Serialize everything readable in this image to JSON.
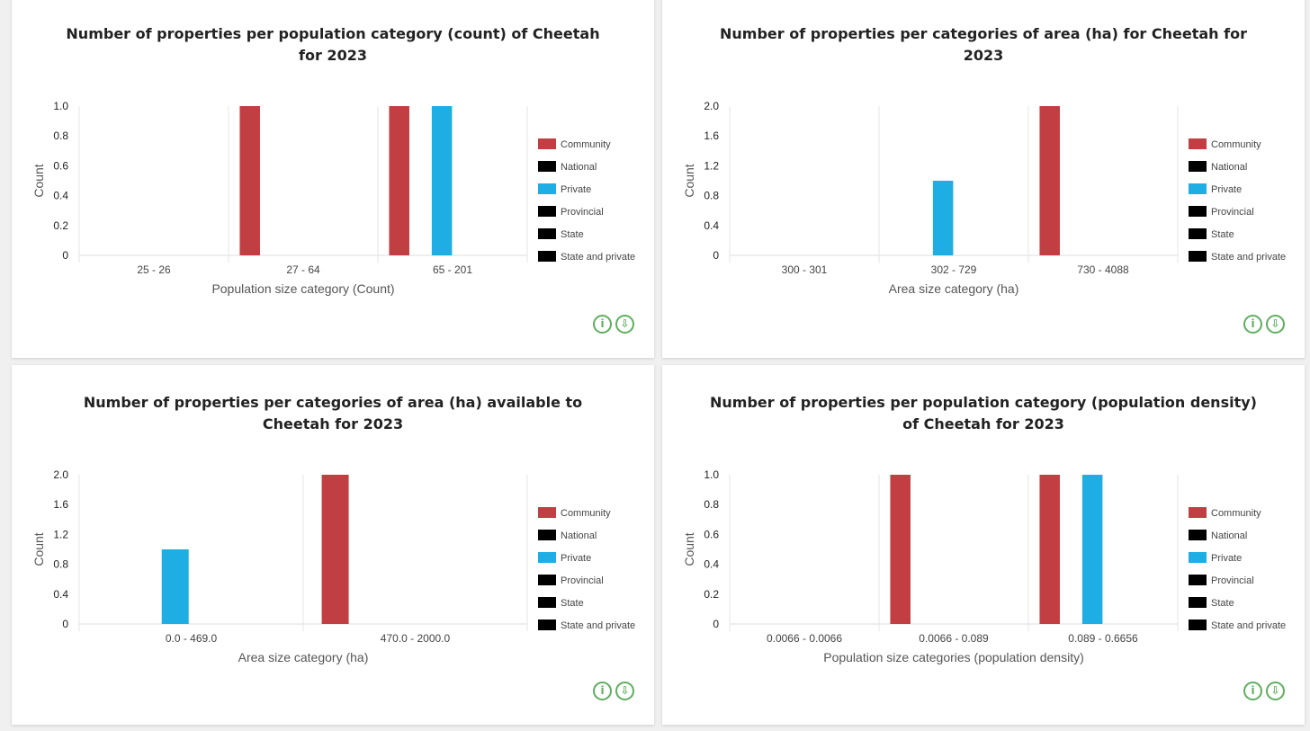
{
  "colors": {
    "community": "#c13f42",
    "private": "#1eaee3",
    "black": "#000000",
    "icon": "#5fae5f"
  },
  "legend": [
    {
      "label": "Community",
      "color": "#c13f42"
    },
    {
      "label": "National",
      "color": "#000000"
    },
    {
      "label": "Private",
      "color": "#1eaee3"
    },
    {
      "label": "Provincial",
      "color": "#000000"
    },
    {
      "label": "State",
      "color": "#000000"
    },
    {
      "label": "State and private",
      "color": "#000000"
    }
  ],
  "icons": {
    "info": "info-icon",
    "download": "download-icon",
    "info_glyph": "i",
    "download_glyph": "⇩"
  },
  "chart_data": [
    {
      "type": "bar",
      "title": "Number of properties per population category (count) of Cheetah for 2023",
      "xlabel": "Population size category (Count)",
      "ylabel": "Count",
      "ylim": [
        0,
        1.0
      ],
      "yticks": [
        "0",
        "0.2",
        "0.4",
        "0.6",
        "0.8",
        "1.0"
      ],
      "categories": [
        "25 - 26",
        "27 - 64",
        "65 - 201"
      ],
      "series": [
        {
          "name": "Community",
          "values": [
            0,
            1,
            1
          ]
        },
        {
          "name": "National",
          "values": [
            0,
            0,
            0
          ]
        },
        {
          "name": "Private",
          "values": [
            0,
            0,
            1
          ]
        },
        {
          "name": "Provincial",
          "values": [
            0,
            0,
            0
          ]
        },
        {
          "name": "State",
          "values": [
            0,
            0,
            0
          ]
        },
        {
          "name": "State and private",
          "values": [
            0,
            0,
            0
          ]
        }
      ],
      "legend_position": "right"
    },
    {
      "type": "bar",
      "title": "Number of properties per categories of area (ha) for Cheetah for 2023",
      "xlabel": "Area size category (ha)",
      "ylabel": "Count",
      "ylim": [
        0,
        2.0
      ],
      "yticks": [
        "0",
        "0.4",
        "0.8",
        "1.2",
        "1.6",
        "2.0"
      ],
      "categories": [
        "300 - 301",
        "302 - 729",
        "730 - 4088"
      ],
      "series": [
        {
          "name": "Community",
          "values": [
            0,
            0,
            2
          ]
        },
        {
          "name": "National",
          "values": [
            0,
            0,
            0
          ]
        },
        {
          "name": "Private",
          "values": [
            0,
            1,
            0
          ]
        },
        {
          "name": "Provincial",
          "values": [
            0,
            0,
            0
          ]
        },
        {
          "name": "State",
          "values": [
            0,
            0,
            0
          ]
        },
        {
          "name": "State and private",
          "values": [
            0,
            0,
            0
          ]
        }
      ],
      "legend_position": "right"
    },
    {
      "type": "bar",
      "title": "Number of properties per categories of area (ha) available to Cheetah for 2023",
      "xlabel": "Area size category (ha)",
      "ylabel": "Count",
      "ylim": [
        0,
        2.0
      ],
      "yticks": [
        "0",
        "0.4",
        "0.8",
        "1.2",
        "1.6",
        "2.0"
      ],
      "categories": [
        "0.0 - 469.0",
        "470.0 - 2000.0"
      ],
      "series": [
        {
          "name": "Community",
          "values": [
            0,
            2
          ]
        },
        {
          "name": "National",
          "values": [
            0,
            0
          ]
        },
        {
          "name": "Private",
          "values": [
            1,
            0
          ]
        },
        {
          "name": "Provincial",
          "values": [
            0,
            0
          ]
        },
        {
          "name": "State",
          "values": [
            0,
            0
          ]
        },
        {
          "name": "State and private",
          "values": [
            0,
            0
          ]
        }
      ],
      "legend_position": "right"
    },
    {
      "type": "bar",
      "title": "Number of properties per population category (population density) of Cheetah for 2023",
      "xlabel": "Population size categories (population density)",
      "ylabel": "Count",
      "ylim": [
        0,
        1.0
      ],
      "yticks": [
        "0",
        "0.2",
        "0.4",
        "0.6",
        "0.8",
        "1.0"
      ],
      "categories": [
        "0.0066 - 0.0066",
        "0.0066 - 0.089",
        "0.089 - 0.6656"
      ],
      "series": [
        {
          "name": "Community",
          "values": [
            0,
            1,
            1
          ]
        },
        {
          "name": "National",
          "values": [
            0,
            0,
            0
          ]
        },
        {
          "name": "Private",
          "values": [
            0,
            0,
            1
          ]
        },
        {
          "name": "Provincial",
          "values": [
            0,
            0,
            0
          ]
        },
        {
          "name": "State",
          "values": [
            0,
            0,
            0
          ]
        },
        {
          "name": "State and private",
          "values": [
            0,
            0,
            0
          ]
        }
      ],
      "legend_position": "right"
    }
  ]
}
